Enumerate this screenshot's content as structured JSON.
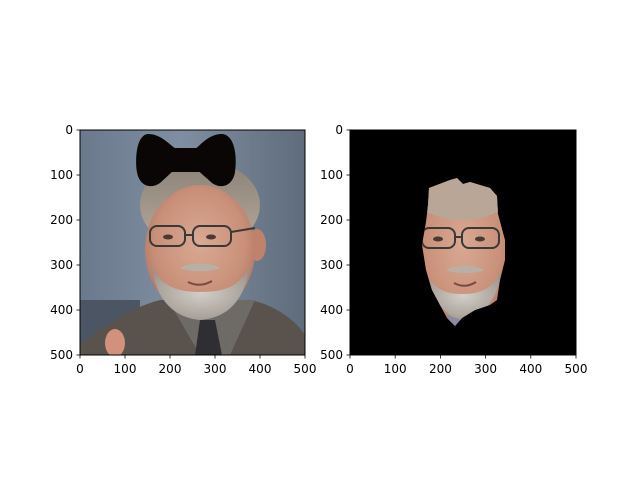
{
  "figure": {
    "background": "#ffffff"
  },
  "chart_data": [
    {
      "type": "image",
      "panel": "left",
      "content": "portrait photo of a bearded man with glasses, grey suit and tie, with a black bow-tie shape drawn over the top of his head",
      "xlim": [
        0,
        500
      ],
      "ylim": [
        500,
        0
      ],
      "y_inverted": true,
      "xticks": [
        0,
        100,
        200,
        300,
        400,
        500
      ],
      "yticks": [
        0,
        100,
        200,
        300,
        400,
        500
      ],
      "title": "",
      "xlabel": "",
      "ylabel": ""
    },
    {
      "type": "image",
      "panel": "right",
      "content": "same portrait masked to the face region only; everything else black",
      "background": "#000000",
      "xlim": [
        0,
        500
      ],
      "ylim": [
        500,
        0
      ],
      "y_inverted": true,
      "xticks": [
        0,
        100,
        200,
        300,
        400,
        500
      ],
      "yticks": [
        0,
        100,
        200,
        300,
        400,
        500
      ],
      "title": "",
      "xlabel": "",
      "ylabel": ""
    }
  ]
}
